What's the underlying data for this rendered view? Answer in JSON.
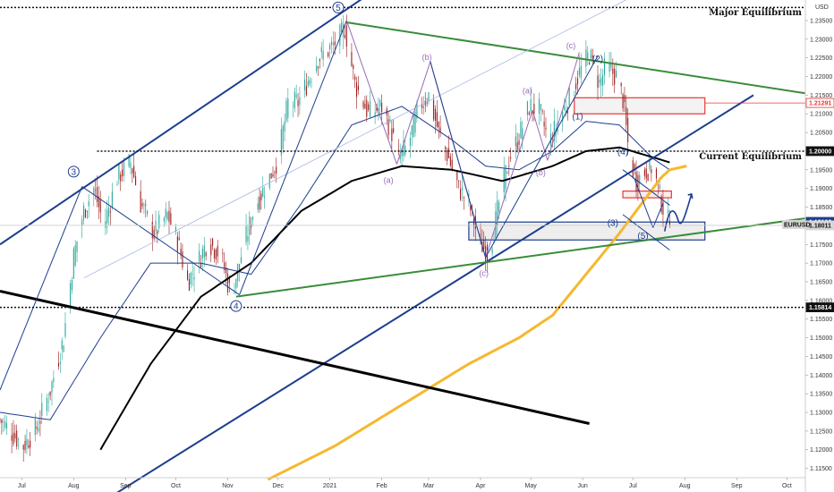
{
  "chart_data": {
    "type": "candlestick",
    "currency": "USD",
    "symbol": "EURUSD",
    "y_ticks": [
      1.115,
      1.12,
      1.125,
      1.13,
      1.135,
      1.14,
      1.145,
      1.15,
      1.155,
      1.16,
      1.165,
      1.17,
      1.175,
      1.18,
      1.185,
      1.19,
      1.195,
      1.2,
      1.205,
      1.21,
      1.215,
      1.22,
      1.225,
      1.23,
      1.235
    ],
    "y_tick_labels": [
      "1.11500",
      "1.12000",
      "1.12500",
      "1.13000",
      "1.13500",
      "1.14000",
      "1.14500",
      "1.15000",
      "1.15500",
      "1.16000",
      "1.16500",
      "1.17000",
      "1.17500",
      "1.18000",
      "1.18500",
      "1.19000",
      "1.19500",
      "1.20000",
      "1.20500",
      "1.21000",
      "1.21500",
      "1.22000",
      "1.22500",
      "1.23000",
      "1.23500"
    ],
    "ylim": [
      1.1125,
      1.2405
    ],
    "x_labels": [
      {
        "label": "Jul",
        "day": 13
      },
      {
        "label": "Aug",
        "day": 44
      },
      {
        "label": "Sep",
        "day": 75
      },
      {
        "label": "Oct",
        "day": 105
      },
      {
        "label": "Nov",
        "day": 136
      },
      {
        "label": "Dec",
        "day": 166
      },
      {
        "label": "2021",
        "day": 197
      },
      {
        "label": "Feb",
        "day": 228
      },
      {
        "label": "Mar",
        "day": 256
      },
      {
        "label": "Apr",
        "day": 287
      },
      {
        "label": "May",
        "day": 317
      },
      {
        "label": "Jun",
        "day": 348
      },
      {
        "label": "Jul",
        "day": 378
      },
      {
        "label": "Aug",
        "day": 409
      },
      {
        "label": "Sep",
        "day": 440
      },
      {
        "label": "Oct",
        "day": 470
      }
    ],
    "xlim": [
      0,
      481
    ],
    "last_day": 400,
    "price_path": [
      [
        0,
        1.128
      ],
      [
        8,
        1.124
      ],
      [
        14,
        1.121
      ],
      [
        22,
        1.126
      ],
      [
        30,
        1.136
      ],
      [
        38,
        1.15
      ],
      [
        44,
        1.172
      ],
      [
        50,
        1.184
      ],
      [
        56,
        1.19
      ],
      [
        62,
        1.18
      ],
      [
        70,
        1.193
      ],
      [
        78,
        1.197
      ],
      [
        84,
        1.186
      ],
      [
        92,
        1.178
      ],
      [
        100,
        1.183
      ],
      [
        106,
        1.176
      ],
      [
        112,
        1.165
      ],
      [
        118,
        1.17
      ],
      [
        124,
        1.176
      ],
      [
        132,
        1.172
      ],
      [
        138,
        1.161
      ],
      [
        144,
        1.172
      ],
      [
        152,
        1.185
      ],
      [
        160,
        1.192
      ],
      [
        166,
        1.198
      ],
      [
        172,
        1.213
      ],
      [
        178,
        1.213
      ],
      [
        184,
        1.219
      ],
      [
        190,
        1.225
      ],
      [
        196,
        1.227
      ],
      [
        202,
        1.23
      ],
      [
        206,
        1.233
      ],
      [
        212,
        1.218
      ],
      [
        220,
        1.21
      ],
      [
        228,
        1.212
      ],
      [
        234,
        1.205
      ],
      [
        238,
        1.198
      ],
      [
        244,
        1.202
      ],
      [
        250,
        1.212
      ],
      [
        256,
        1.215
      ],
      [
        262,
        1.205
      ],
      [
        268,
        1.198
      ],
      [
        274,
        1.19
      ],
      [
        280,
        1.186
      ],
      [
        286,
        1.176
      ],
      [
        292,
        1.172
      ],
      [
        298,
        1.186
      ],
      [
        304,
        1.198
      ],
      [
        310,
        1.204
      ],
      [
        316,
        1.212
      ],
      [
        322,
        1.211
      ],
      [
        328,
        1.202
      ],
      [
        334,
        1.209
      ],
      [
        340,
        1.214
      ],
      [
        346,
        1.221
      ],
      [
        352,
        1.226
      ],
      [
        358,
        1.218
      ],
      [
        362,
        1.223
      ],
      [
        368,
        1.22
      ],
      [
        372,
        1.214
      ],
      [
        376,
        1.198
      ],
      [
        380,
        1.192
      ],
      [
        386,
        1.195
      ],
      [
        390,
        1.196
      ],
      [
        394,
        1.188
      ],
      [
        398,
        1.182
      ],
      [
        400,
        1.18011
      ]
    ],
    "sma_thin": [
      [
        0,
        1.13
      ],
      [
        30,
        1.128
      ],
      [
        60,
        1.15
      ],
      [
        90,
        1.17
      ],
      [
        120,
        1.17
      ],
      [
        150,
        1.167
      ],
      [
        180,
        1.186
      ],
      [
        210,
        1.207
      ],
      [
        240,
        1.212
      ],
      [
        270,
        1.203
      ],
      [
        290,
        1.196
      ],
      [
        310,
        1.195
      ],
      [
        330,
        1.2
      ],
      [
        350,
        1.208
      ],
      [
        370,
        1.207
      ],
      [
        390,
        1.198
      ],
      [
        400,
        1.195
      ]
    ],
    "sma_black": [
      [
        60,
        1.12
      ],
      [
        90,
        1.143
      ],
      [
        120,
        1.161
      ],
      [
        150,
        1.17
      ],
      [
        180,
        1.184
      ],
      [
        210,
        1.192
      ],
      [
        240,
        1.196
      ],
      [
        270,
        1.195
      ],
      [
        300,
        1.192
      ],
      [
        330,
        1.196
      ],
      [
        350,
        1.2
      ],
      [
        370,
        1.201
      ],
      [
        385,
        1.199
      ],
      [
        400,
        1.197
      ]
    ],
    "sma_yellow": [
      [
        160,
        1.112
      ],
      [
        200,
        1.121
      ],
      [
        240,
        1.132
      ],
      [
        280,
        1.143
      ],
      [
        310,
        1.15
      ],
      [
        330,
        1.156
      ],
      [
        350,
        1.167
      ],
      [
        370,
        1.178
      ],
      [
        385,
        1.187
      ],
      [
        395,
        1.193
      ],
      [
        400,
        1.195
      ],
      [
        410,
        1.196
      ]
    ],
    "levels": [
      {
        "name": "Major Equilibrium",
        "price": 1.2385
      },
      {
        "name": "Current Equilibrium",
        "price": 1.2
      },
      {
        "name": "",
        "price": 1.15814
      }
    ],
    "annotations": [
      "Major Equilibrium",
      "Current Equilibrium"
    ],
    "price_badges": [
      {
        "label": "1.21291",
        "price": 1.21291,
        "bg": "#ffffff",
        "fg": "#e53935",
        "border": "#e53935"
      },
      {
        "label": "1.20000",
        "price": 1.2,
        "bg": "#111111",
        "fg": "#ffffff",
        "border": "#111111"
      },
      {
        "label": "1.18106",
        "price": 1.18106,
        "bg": "#1c3d8f",
        "fg": "#ffffff",
        "border": "#1c3d8f"
      },
      {
        "label": "1.18011",
        "price": 1.18011,
        "bg": "#d6d6d6",
        "fg": "#111111",
        "border": "#d6d6d6"
      },
      {
        "label": "1.15814",
        "price": 1.15814,
        "bg": "#111111",
        "fg": "#ffffff",
        "border": "#111111"
      }
    ],
    "symbol_label": "EURUSD",
    "wave_labels_major": [
      {
        "label": "5",
        "day": 202,
        "price": 1.2385,
        "circled": true
      },
      {
        "label": "3",
        "day": 44,
        "price": 1.1945,
        "circled": true
      },
      {
        "label": "4",
        "day": 141,
        "price": 1.1585,
        "circled": true
      }
    ],
    "wave_labels_minor": [
      {
        "label": "(2)",
        "day": 357,
        "price": 1.224
      },
      {
        "label": "(1)",
        "day": 345,
        "price": 1.2085
      },
      {
        "label": "(4)",
        "day": 372,
        "price": 1.199
      },
      {
        "label": "(3)",
        "day": 366,
        "price": 1.18
      },
      {
        "label": "(5)",
        "day": 384,
        "price": 1.1765
      }
    ],
    "wave_labels_corrective": [
      {
        "label": "(b)",
        "day": 255,
        "price": 1.2245
      },
      {
        "label": "(a)",
        "day": 232,
        "price": 1.1915
      },
      {
        "label": "(c)",
        "day": 289,
        "price": 1.1665
      },
      {
        "label": "(a)",
        "day": 315,
        "price": 1.2155
      },
      {
        "label": "(b)",
        "day": 323,
        "price": 1.1935
      },
      {
        "label": "(c)",
        "day": 341,
        "price": 1.2275
      }
    ],
    "colors": {
      "bull": "#26a69a",
      "bear": "#9c1b1b",
      "navy": "#1c3d8f",
      "green": "#3a8c3a",
      "black": "#000000",
      "yellow": "#f5b82e",
      "red": "#e53935",
      "purple": "#9a6bb8"
    }
  }
}
